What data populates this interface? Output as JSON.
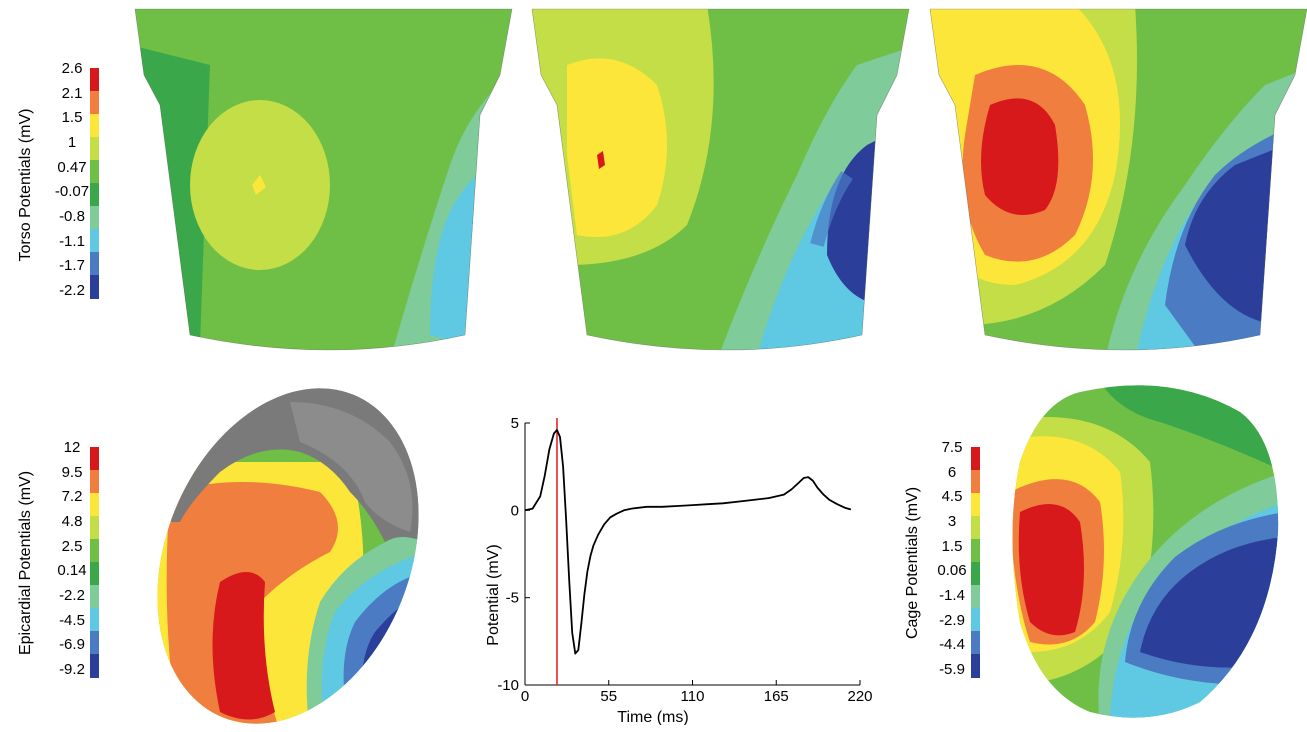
{
  "colors": {
    "scale": [
      "#d7191c",
      "#f07e3e",
      "#fde63a",
      "#c4de48",
      "#6fbe45",
      "#3aa84a",
      "#7fcb9a",
      "#5fc9e4",
      "#4a7bc3",
      "#2b3f9a"
    ],
    "noise_gray": "#7a7a7a",
    "ecg_line": "#000000",
    "time_marker": "#e41a1c"
  },
  "colorbars": {
    "torso": {
      "label": "Torso Potentials (mV)",
      "ticks": [
        "2.6",
        "2.1",
        "1.5",
        "1",
        "0.47",
        "-0.07",
        "-0.8",
        "-1.1",
        "-1.7",
        "-2.2"
      ]
    },
    "epicardial": {
      "label": "Epicardial Potentials (mV)",
      "ticks": [
        "12",
        "9.5",
        "7.2",
        "4.8",
        "2.5",
        "0.14",
        "-2.2",
        "-4.5",
        "-6.9",
        "-9.2"
      ]
    },
    "cage": {
      "label": "Cage Potentials (mV)",
      "ticks": [
        "7.5",
        "6",
        "4.5",
        "3",
        "1.5",
        "0.06",
        "-1.4",
        "-2.9",
        "-4.4",
        "-5.9"
      ]
    }
  },
  "maps": {
    "torso_1": "torso surface potential map, early frame",
    "torso_2": "torso surface potential map, middle frame",
    "torso_3": "torso surface potential map, late frame",
    "epicardial": "epicardial surface potential map",
    "cage": "cage surface potential map"
  },
  "chart_data": {
    "type": "line",
    "title": "",
    "xlabel": "Time (ms)",
    "ylabel": "Potential (mV)",
    "xlim": [
      0,
      220
    ],
    "ylim": [
      -10,
      5
    ],
    "xticks": [
      "0",
      "55",
      "110",
      "165",
      "220"
    ],
    "yticks": [
      "5",
      "0",
      "-5",
      "-10"
    ],
    "grid": false,
    "legend": "none",
    "time_marker_ms": 21,
    "series": [
      {
        "x": [
          0,
          5,
          10,
          13,
          16,
          19,
          21,
          23,
          25,
          27,
          29,
          31,
          33,
          35,
          37,
          39,
          41,
          43,
          45,
          48,
          52,
          56,
          60,
          65,
          70,
          80,
          90,
          100,
          110,
          120,
          130,
          140,
          150,
          160,
          170,
          175,
          180,
          183,
          186,
          189,
          192,
          196,
          200,
          205,
          210,
          214
        ],
        "values": [
          0,
          0.1,
          0.8,
          2.0,
          3.5,
          4.4,
          4.6,
          4.2,
          2.5,
          -0.5,
          -4.0,
          -7.0,
          -8.2,
          -8.0,
          -6.5,
          -4.8,
          -3.5,
          -2.6,
          -2.0,
          -1.4,
          -0.8,
          -0.4,
          -0.2,
          0,
          0.1,
          0.2,
          0.2,
          0.25,
          0.3,
          0.35,
          0.4,
          0.5,
          0.6,
          0.7,
          0.9,
          1.2,
          1.6,
          1.85,
          1.9,
          1.7,
          1.3,
          0.9,
          0.6,
          0.35,
          0.15,
          0.05
        ]
      }
    ]
  }
}
